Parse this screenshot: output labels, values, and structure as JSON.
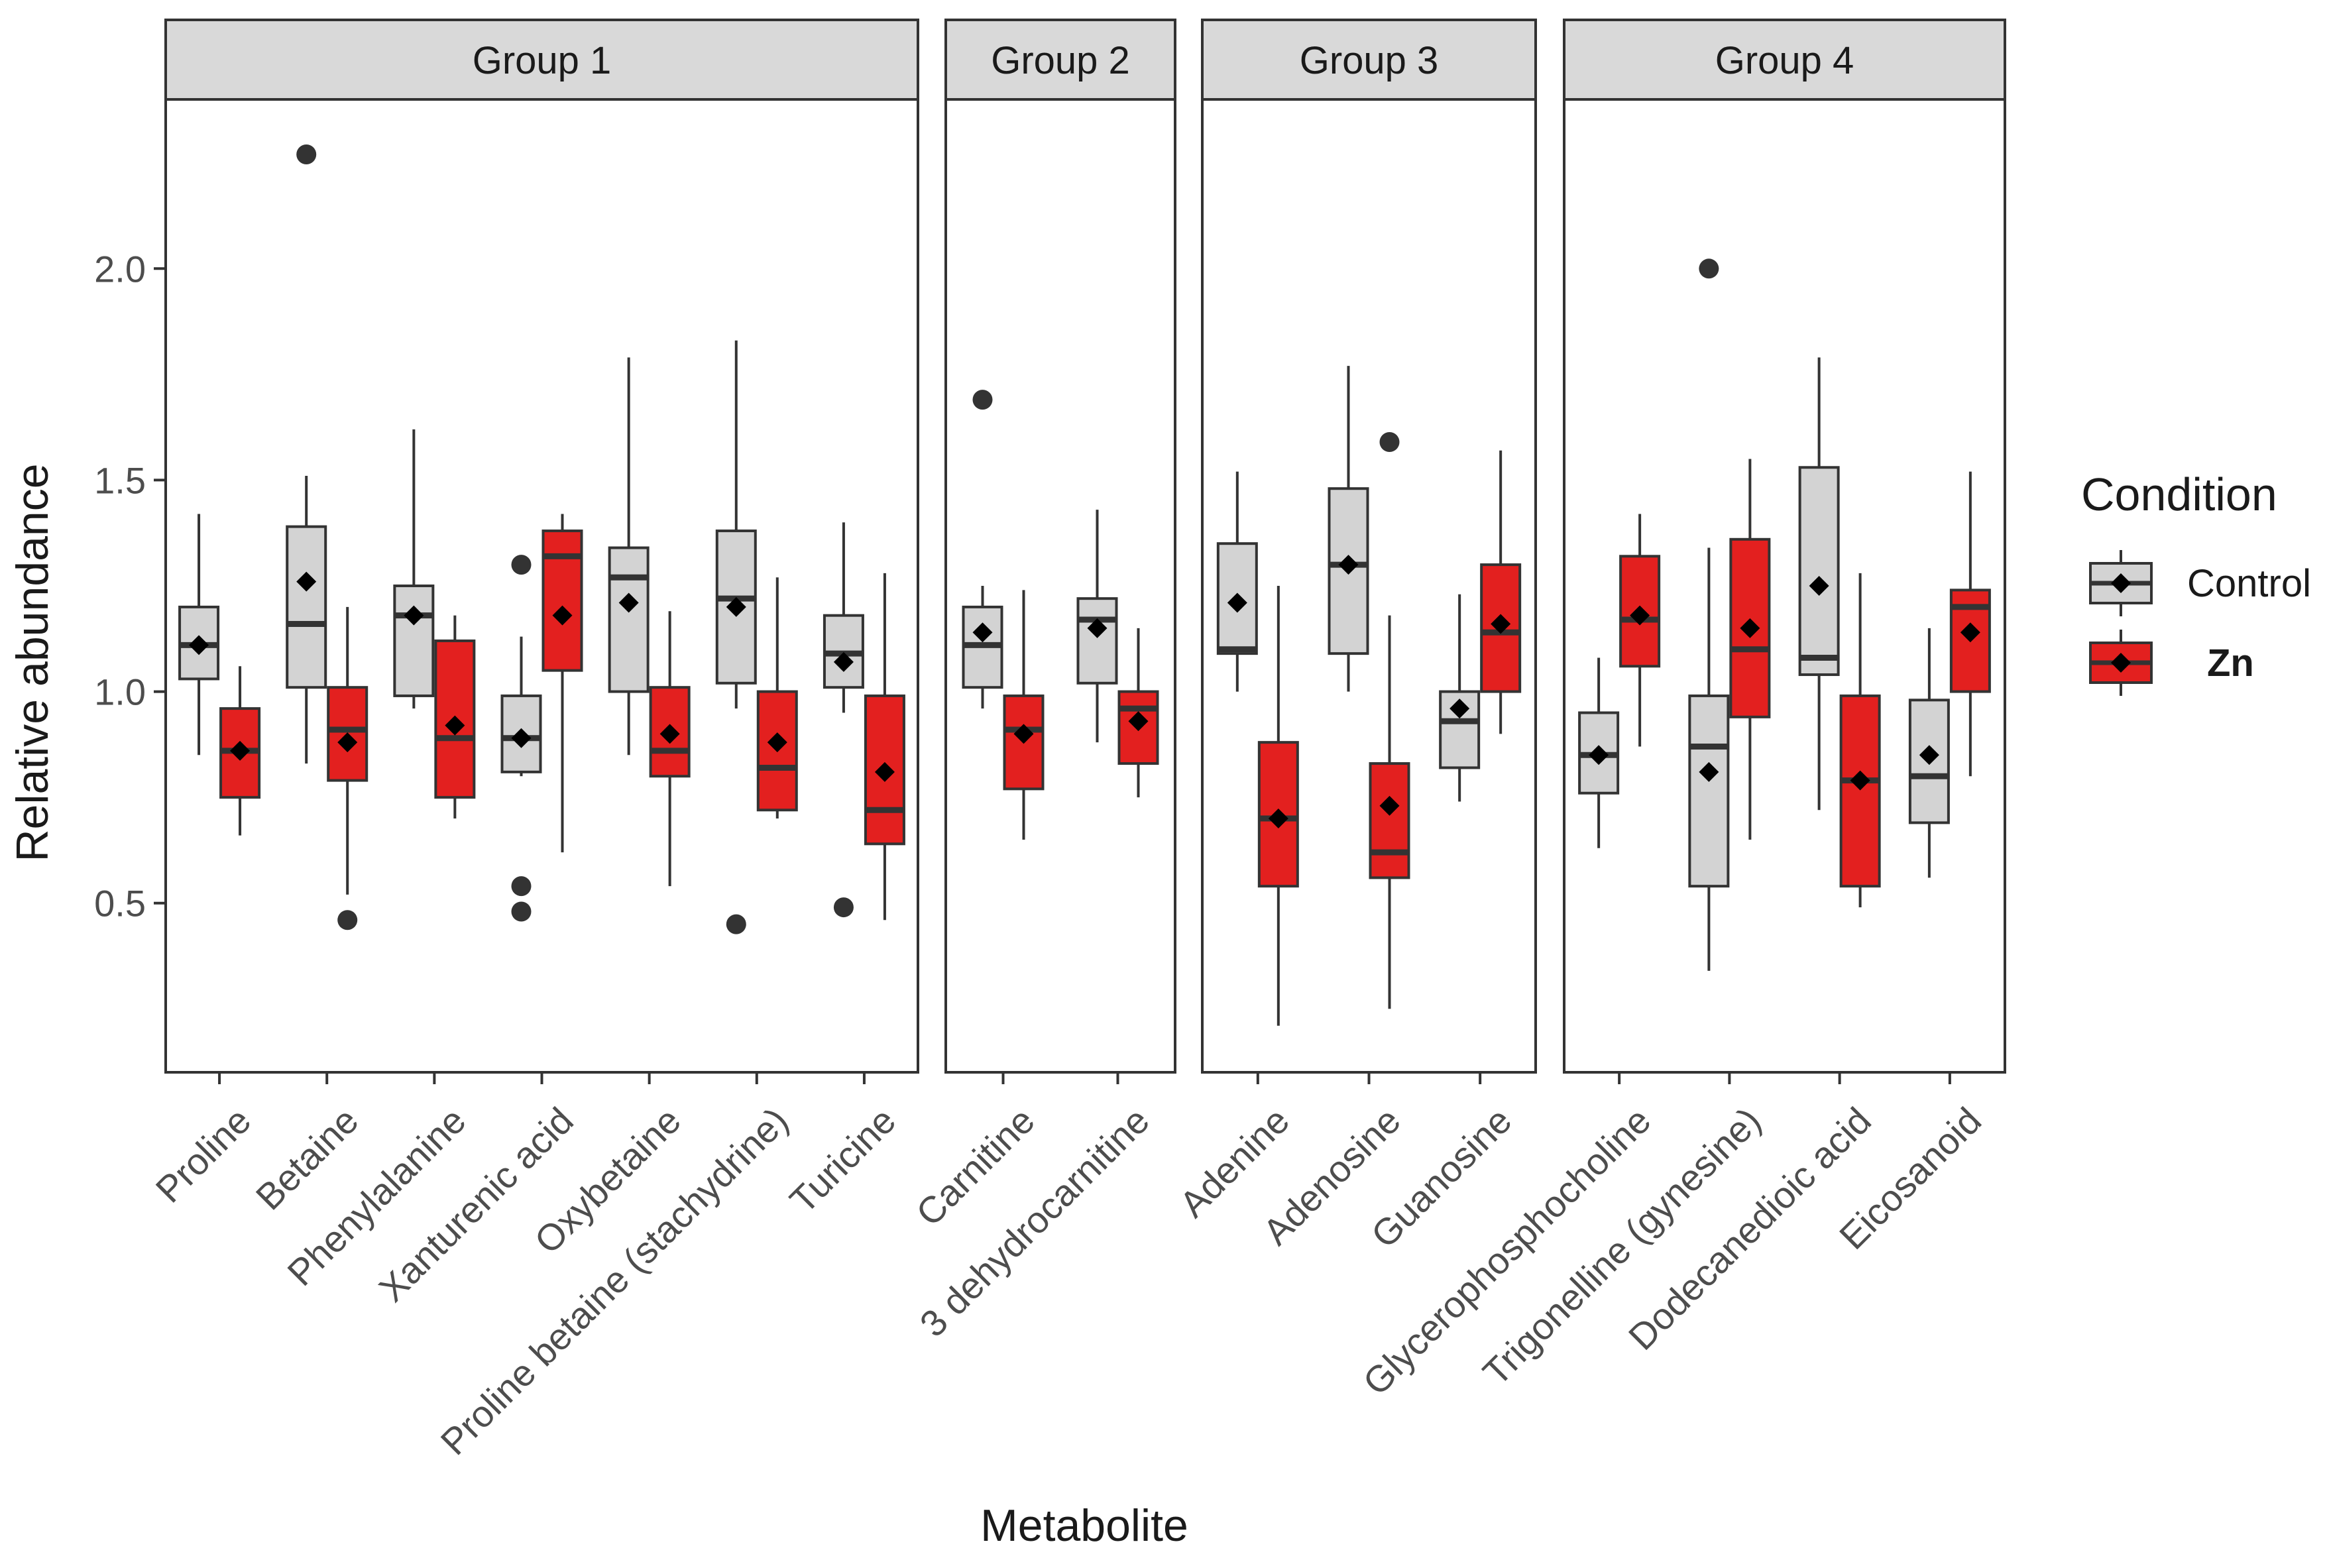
{
  "chart_data": {
    "type": "boxplot",
    "xlabel": "Metabolite",
    "ylabel": "Relative abundance",
    "ylim": [
      0.1,
      2.4
    ],
    "yticks": [
      0.5,
      1.0,
      1.5,
      2.0
    ],
    "ytick_labels": [
      "0.5",
      "1.0",
      "1.5",
      "2.0"
    ],
    "grid": false,
    "legend": {
      "title": "Condition",
      "position": "right",
      "items": [
        {
          "name": "Control",
          "color": "#d3d3d3"
        },
        {
          "name": "Zn",
          "color": "#e3201f"
        }
      ]
    },
    "colors": {
      "Control": "#d3d3d3",
      "Zn": "#e3201f",
      "outline": "#333333",
      "strip": "#d9d9d9"
    },
    "facets": [
      {
        "name": "Group 1",
        "metabolites": [
          {
            "name": "Proline",
            "Control": {
              "q1": 1.03,
              "median": 1.11,
              "q3": 1.2,
              "lo": 0.85,
              "hi": 1.42,
              "mean": 1.11,
              "outliers": []
            },
            "Zn": {
              "q1": 0.75,
              "median": 0.86,
              "q3": 0.96,
              "lo": 0.66,
              "hi": 1.06,
              "mean": 0.86,
              "outliers": []
            }
          },
          {
            "name": "Betaine",
            "Control": {
              "q1": 1.01,
              "median": 1.16,
              "q3": 1.39,
              "lo": 0.83,
              "hi": 1.51,
              "mean": 1.26,
              "outliers": [
                2.27
              ]
            },
            "Zn": {
              "q1": 0.79,
              "median": 0.91,
              "q3": 1.01,
              "lo": 0.52,
              "hi": 1.2,
              "mean": 0.88,
              "outliers": [
                0.46
              ]
            }
          },
          {
            "name": "Phenylalanine",
            "Control": {
              "q1": 0.99,
              "median": 1.18,
              "q3": 1.25,
              "lo": 0.96,
              "hi": 1.62,
              "mean": 1.18,
              "outliers": []
            },
            "Zn": {
              "q1": 0.75,
              "median": 0.89,
              "q3": 1.12,
              "lo": 0.7,
              "hi": 1.18,
              "mean": 0.92,
              "outliers": []
            }
          },
          {
            "name": "Xanturenic acid",
            "Control": {
              "q1": 0.81,
              "median": 0.89,
              "q3": 0.99,
              "lo": 0.8,
              "hi": 1.13,
              "mean": 0.89,
              "outliers": [
                1.3,
                0.54,
                0.48
              ]
            },
            "Zn": {
              "q1": 1.05,
              "median": 1.32,
              "q3": 1.38,
              "lo": 0.62,
              "hi": 1.42,
              "mean": 1.18,
              "outliers": []
            }
          },
          {
            "name": "Oxybetaine",
            "Control": {
              "q1": 1.0,
              "median": 1.27,
              "q3": 1.34,
              "lo": 0.85,
              "hi": 1.79,
              "mean": 1.21,
              "outliers": []
            },
            "Zn": {
              "q1": 0.8,
              "median": 0.86,
              "q3": 1.01,
              "lo": 0.54,
              "hi": 1.19,
              "mean": 0.9,
              "outliers": []
            }
          },
          {
            "name": "Proline betaine (stachydrine)",
            "Control": {
              "q1": 1.02,
              "median": 1.22,
              "q3": 1.38,
              "lo": 0.96,
              "hi": 1.83,
              "mean": 1.2,
              "outliers": [
                0.45
              ]
            },
            "Zn": {
              "q1": 0.72,
              "median": 0.82,
              "q3": 1.0,
              "lo": 0.7,
              "hi": 1.27,
              "mean": 0.88,
              "outliers": []
            }
          },
          {
            "name": "Turicine",
            "Control": {
              "q1": 1.01,
              "median": 1.09,
              "q3": 1.18,
              "lo": 0.95,
              "hi": 1.4,
              "mean": 1.07,
              "outliers": [
                0.49
              ]
            },
            "Zn": {
              "q1": 0.64,
              "median": 0.72,
              "q3": 0.99,
              "lo": 0.46,
              "hi": 1.28,
              "mean": 0.81,
              "outliers": []
            }
          }
        ]
      },
      {
        "name": "Group 2",
        "metabolites": [
          {
            "name": "Carnitine",
            "Control": {
              "q1": 1.01,
              "median": 1.11,
              "q3": 1.2,
              "lo": 0.96,
              "hi": 1.25,
              "mean": 1.14,
              "outliers": [
                1.69
              ]
            },
            "Zn": {
              "q1": 0.77,
              "median": 0.91,
              "q3": 0.99,
              "lo": 0.65,
              "hi": 1.24,
              "mean": 0.9,
              "outliers": []
            }
          },
          {
            "name": "3 dehydrocarnitine",
            "Control": {
              "q1": 1.02,
              "median": 1.17,
              "q3": 1.22,
              "lo": 0.88,
              "hi": 1.43,
              "mean": 1.15,
              "outliers": []
            },
            "Zn": {
              "q1": 0.83,
              "median": 0.96,
              "q3": 1.0,
              "lo": 0.75,
              "hi": 1.15,
              "mean": 0.93,
              "outliers": []
            }
          }
        ]
      },
      {
        "name": "Group 3",
        "metabolites": [
          {
            "name": "Adenine",
            "Control": {
              "q1": 1.09,
              "median": 1.1,
              "q3": 1.35,
              "lo": 1.0,
              "hi": 1.52,
              "mean": 1.21,
              "outliers": []
            },
            "Zn": {
              "q1": 0.54,
              "median": 0.7,
              "q3": 0.88,
              "lo": 0.21,
              "hi": 1.25,
              "mean": 0.7,
              "outliers": []
            }
          },
          {
            "name": "Adenosine",
            "Control": {
              "q1": 1.09,
              "median": 1.3,
              "q3": 1.48,
              "lo": 1.0,
              "hi": 1.77,
              "mean": 1.3,
              "outliers": []
            },
            "Zn": {
              "q1": 0.56,
              "median": 0.62,
              "q3": 0.83,
              "lo": 0.25,
              "hi": 1.18,
              "mean": 0.73,
              "outliers": [
                1.59
              ]
            }
          },
          {
            "name": "Guanosine",
            "Control": {
              "q1": 0.82,
              "median": 0.93,
              "q3": 1.0,
              "lo": 0.74,
              "hi": 1.23,
              "mean": 0.96,
              "outliers": []
            },
            "Zn": {
              "q1": 1.0,
              "median": 1.14,
              "q3": 1.3,
              "lo": 0.9,
              "hi": 1.57,
              "mean": 1.16,
              "outliers": []
            }
          }
        ]
      },
      {
        "name": "Group 4",
        "metabolites": [
          {
            "name": "Glycerophosphocholine",
            "Control": {
              "q1": 0.76,
              "median": 0.85,
              "q3": 0.95,
              "lo": 0.63,
              "hi": 1.08,
              "mean": 0.85,
              "outliers": []
            },
            "Zn": {
              "q1": 1.06,
              "median": 1.17,
              "q3": 1.32,
              "lo": 0.87,
              "hi": 1.42,
              "mean": 1.18,
              "outliers": []
            }
          },
          {
            "name": "Trigonelline (gynesine)",
            "Control": {
              "q1": 0.54,
              "median": 0.87,
              "q3": 0.99,
              "lo": 0.34,
              "hi": 1.34,
              "mean": 0.81,
              "outliers": [
                2.0
              ]
            },
            "Zn": {
              "q1": 0.94,
              "median": 1.1,
              "q3": 1.36,
              "lo": 0.65,
              "hi": 1.55,
              "mean": 1.15,
              "outliers": []
            }
          },
          {
            "name": "Dodecanedioic acid",
            "Control": {
              "q1": 1.04,
              "median": 1.08,
              "q3": 1.53,
              "lo": 0.72,
              "hi": 1.79,
              "mean": 1.25,
              "outliers": []
            },
            "Zn": {
              "q1": 0.54,
              "median": 0.79,
              "q3": 0.99,
              "lo": 0.49,
              "hi": 1.28,
              "mean": 0.79,
              "outliers": []
            }
          },
          {
            "name": "Eicosanoid",
            "Control": {
              "q1": 0.69,
              "median": 0.8,
              "q3": 0.98,
              "lo": 0.56,
              "hi": 1.15,
              "mean": 0.85,
              "outliers": []
            },
            "Zn": {
              "q1": 1.0,
              "median": 1.2,
              "q3": 1.24,
              "lo": 0.8,
              "hi": 1.52,
              "mean": 1.14,
              "outliers": []
            }
          }
        ]
      }
    ]
  }
}
